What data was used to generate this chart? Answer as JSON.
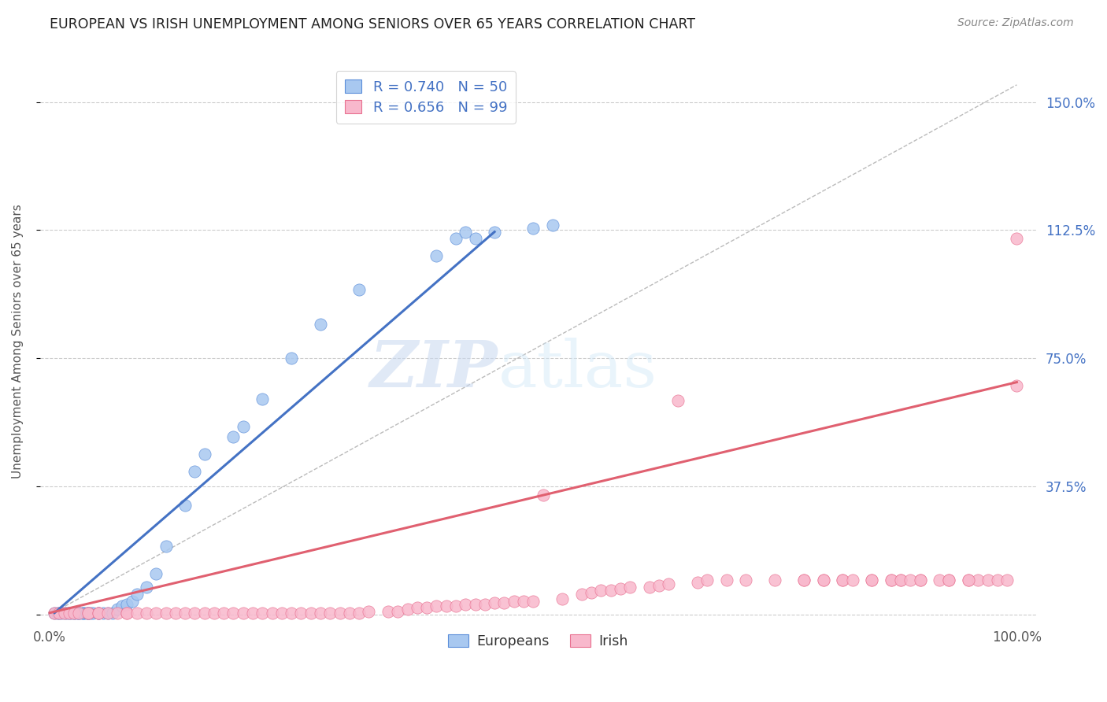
{
  "title": "EUROPEAN VS IRISH UNEMPLOYMENT AMONG SENIORS OVER 65 YEARS CORRELATION CHART",
  "source": "Source: ZipAtlas.com",
  "xlabel_start": "0.0%",
  "xlabel_end": "100.0%",
  "ylabel": "Unemployment Among Seniors over 65 years",
  "y_ticks": [
    0.0,
    0.375,
    0.75,
    1.125,
    1.5
  ],
  "y_tick_labels": [
    "",
    "37.5%",
    "75.0%",
    "112.5%",
    "150.0%"
  ],
  "x_lim": [
    -0.01,
    1.02
  ],
  "y_lim": [
    -0.02,
    1.62
  ],
  "europeans_color": "#A8C8F0",
  "irish_color": "#F8B8CC",
  "european_edge_color": "#5B8DD9",
  "irish_edge_color": "#E87090",
  "european_line_color": "#4472C4",
  "irish_line_color": "#E06070",
  "ref_line_color": "#BBBBBB",
  "legend_eu_label": "R = 0.740   N = 50",
  "legend_ir_label": "R = 0.656   N = 99",
  "watermark_zip": "ZIP",
  "watermark_atlas": "atlas",
  "europeans_x": [
    0.005,
    0.008,
    0.01,
    0.012,
    0.015,
    0.018,
    0.02,
    0.022,
    0.025,
    0.025,
    0.028,
    0.03,
    0.03,
    0.033,
    0.035,
    0.035,
    0.038,
    0.04,
    0.04,
    0.042,
    0.045,
    0.05,
    0.05,
    0.055,
    0.06,
    0.065,
    0.07,
    0.075,
    0.08,
    0.085,
    0.09,
    0.1,
    0.11,
    0.12,
    0.14,
    0.15,
    0.16,
    0.19,
    0.2,
    0.22,
    0.25,
    0.28,
    0.32,
    0.4,
    0.42,
    0.43,
    0.44,
    0.46,
    0.5,
    0.52
  ],
  "europeans_y": [
    0.005,
    0.005,
    0.005,
    0.005,
    0.005,
    0.005,
    0.005,
    0.005,
    0.005,
    0.005,
    0.005,
    0.005,
    0.005,
    0.005,
    0.005,
    0.005,
    0.005,
    0.005,
    0.005,
    0.005,
    0.005,
    0.005,
    0.005,
    0.005,
    0.005,
    0.005,
    0.015,
    0.025,
    0.03,
    0.04,
    0.06,
    0.08,
    0.12,
    0.2,
    0.32,
    0.42,
    0.47,
    0.52,
    0.55,
    0.63,
    0.75,
    0.85,
    0.95,
    1.05,
    1.1,
    1.12,
    1.1,
    1.12,
    1.13,
    1.14
  ],
  "irish_x": [
    0.005,
    0.01,
    0.015,
    0.02,
    0.025,
    0.03,
    0.04,
    0.04,
    0.05,
    0.05,
    0.06,
    0.07,
    0.08,
    0.08,
    0.09,
    0.1,
    0.11,
    0.12,
    0.13,
    0.14,
    0.15,
    0.16,
    0.17,
    0.18,
    0.19,
    0.2,
    0.21,
    0.22,
    0.23,
    0.24,
    0.25,
    0.26,
    0.27,
    0.28,
    0.29,
    0.3,
    0.31,
    0.32,
    0.33,
    0.35,
    0.36,
    0.37,
    0.38,
    0.39,
    0.4,
    0.41,
    0.42,
    0.43,
    0.44,
    0.45,
    0.46,
    0.47,
    0.48,
    0.49,
    0.5,
    0.51,
    0.53,
    0.55,
    0.56,
    0.57,
    0.58,
    0.59,
    0.6,
    0.62,
    0.63,
    0.64,
    0.65,
    0.67,
    0.68,
    0.7,
    0.72,
    0.75,
    0.78,
    0.8,
    0.82,
    0.85,
    0.87,
    0.88,
    0.9,
    0.92,
    0.93,
    0.95,
    0.96,
    0.97,
    0.98,
    0.99,
    1.0,
    0.78,
    0.8,
    0.82,
    0.83,
    0.85,
    0.87,
    0.88,
    0.89,
    0.9,
    0.93,
    0.95,
    1.0
  ],
  "irish_y": [
    0.005,
    0.005,
    0.005,
    0.005,
    0.005,
    0.005,
    0.005,
    0.005,
    0.005,
    0.005,
    0.005,
    0.005,
    0.005,
    0.005,
    0.005,
    0.005,
    0.005,
    0.005,
    0.005,
    0.005,
    0.005,
    0.005,
    0.005,
    0.005,
    0.005,
    0.005,
    0.005,
    0.005,
    0.005,
    0.005,
    0.005,
    0.005,
    0.005,
    0.005,
    0.005,
    0.005,
    0.005,
    0.005,
    0.01,
    0.01,
    0.01,
    0.015,
    0.02,
    0.02,
    0.025,
    0.025,
    0.025,
    0.03,
    0.03,
    0.03,
    0.035,
    0.035,
    0.04,
    0.04,
    0.04,
    0.35,
    0.045,
    0.06,
    0.065,
    0.07,
    0.07,
    0.075,
    0.08,
    0.08,
    0.085,
    0.09,
    0.625,
    0.095,
    0.1,
    0.1,
    0.1,
    0.1,
    0.1,
    0.1,
    0.1,
    0.1,
    0.1,
    0.1,
    0.1,
    0.1,
    0.1,
    0.1,
    0.1,
    0.1,
    0.1,
    0.1,
    0.67,
    0.1,
    0.1,
    0.1,
    0.1,
    0.1,
    0.1,
    0.1,
    0.1,
    0.1,
    0.1,
    0.1,
    1.1
  ],
  "european_line_x": [
    0.005,
    0.46
  ],
  "european_line_y": [
    0.005,
    1.12
  ],
  "irish_line_x": [
    0.0,
    1.0
  ],
  "irish_line_y": [
    0.005,
    0.68
  ],
  "ref_line_x": [
    0.0,
    1.0
  ],
  "ref_line_y": [
    0.0,
    1.55
  ],
  "background_color": "#FFFFFF",
  "grid_color": "#CCCCCC",
  "title_color": "#222222",
  "axis_label_color": "#555555",
  "right_tick_color": "#4472C4",
  "legend_text_color": "#4472C4",
  "legend_label_color": "#333333"
}
